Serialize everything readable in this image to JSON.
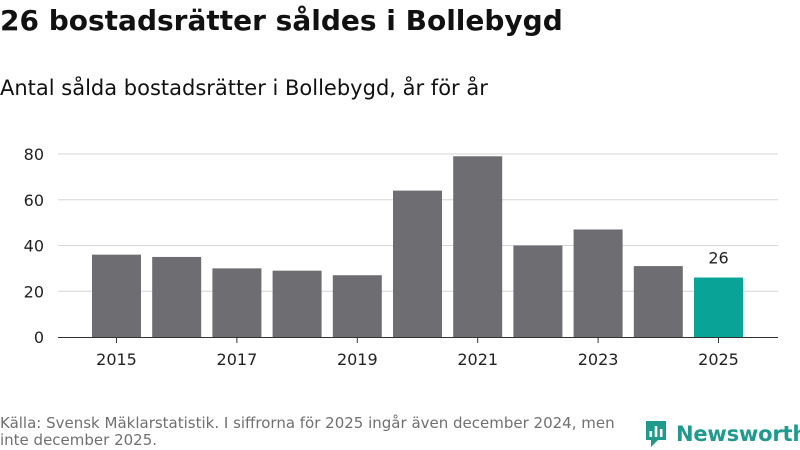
{
  "headline": "26 bostadsrätter såldes i Bollebygd",
  "chart_data": {
    "type": "bar",
    "title": "Antal sålda bostadsrätter i Bollebygd, år för år",
    "xlabel": "",
    "ylabel": "",
    "categories": [
      "2015",
      "2016",
      "2017",
      "2018",
      "2019",
      "2020",
      "2021",
      "2022",
      "2023",
      "2024",
      "2025"
    ],
    "values": [
      36,
      35,
      30,
      29,
      27,
      64,
      79,
      40,
      47,
      31,
      26
    ],
    "x_tick_labels": [
      "2015",
      "2017",
      "2019",
      "2021",
      "2023",
      "2025"
    ],
    "y_ticks": [
      0,
      20,
      40,
      60,
      80
    ],
    "ylim": [
      0,
      80
    ],
    "grid": true,
    "data_labels": [
      {
        "category": "2025",
        "text": "26"
      }
    ],
    "colors": {
      "bar": "#6e6d72",
      "highlight": "#0aa398",
      "grid": "#d6d6d6",
      "axis": "#333333"
    },
    "highlight_category": "2025"
  },
  "footer": {
    "source": "Källa: Svensk Mäklarstatistik. I siffrorna för 2025 ingår även december 2024, men inte december 2025."
  },
  "brand": {
    "name": "Newsworthy",
    "icon": "bar-chart-logo-icon",
    "color": "#1f9a8c"
  }
}
